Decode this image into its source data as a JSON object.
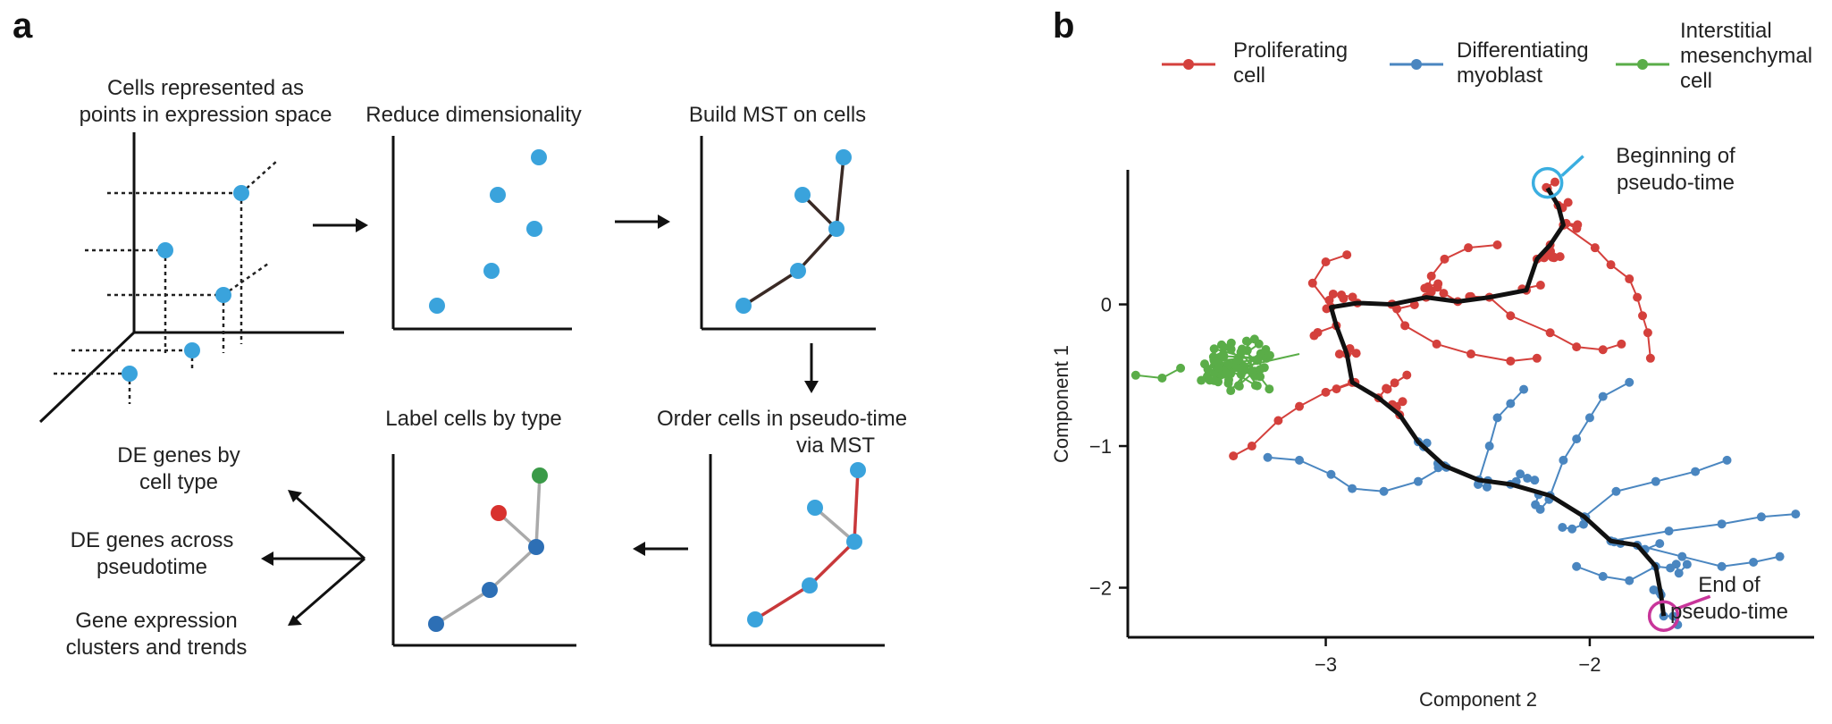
{
  "panel_a": {
    "label": "a",
    "step1_line1": "Cells represented as",
    "step1_line2": "points in expression space",
    "step2": "Reduce dimensionality",
    "step3": "Build MST on cells",
    "step4_line1": "Order cells in pseudo-time",
    "step4_line2": "via MST",
    "step5": "Label cells by type",
    "out1_line1": "DE genes by",
    "out1_line2": "cell type",
    "out2_line1": "DE genes across",
    "out2_line2": "pseudotime",
    "out3_line1": "Gene expression",
    "out3_line2": "clusters and trends",
    "colors": {
      "point": "#3aa3dc",
      "mst_edge": "#3a2a25",
      "path_edge": "#c8383a",
      "side_edge": "#aaaaaa",
      "red_cell": "#d8322e",
      "green_cell": "#3a9a48",
      "blue_cell": "#2d6fb5"
    }
  },
  "panel_b": {
    "label": "b",
    "annotation_start_line1": "Beginning of",
    "annotation_start_line2": "pseudo-time",
    "annotation_end_line1": "End of",
    "annotation_end_line2": "pseudo-time",
    "legend": [
      {
        "line1": "Proliferating",
        "line2": "cell",
        "line3": "",
        "color": "#d4403c"
      },
      {
        "line1": "Differentiating",
        "line2": "myoblast",
        "line3": "",
        "color": "#4a86c0"
      },
      {
        "line1": "Interstitial",
        "line2": "mesenchymal",
        "line3": "cell",
        "color": "#5aad48"
      }
    ],
    "colors": {
      "start_circle": "#3aaee0",
      "end_circle": "#c8359a",
      "backbone": "#111111"
    }
  },
  "chart_data": {
    "type": "scatter",
    "xlabel": "Component 2",
    "ylabel": "Component 1",
    "xlim": [
      -3.75,
      -1.15
    ],
    "ylim": [
      -2.35,
      0.95
    ],
    "xticks": [
      -3,
      -2
    ],
    "yticks": [
      0,
      -1,
      -2
    ],
    "xtick_labels": [
      "−3",
      "−2"
    ],
    "ytick_labels": [
      "0",
      "−1",
      "−2"
    ],
    "series": [
      {
        "name": "Proliferating cell",
        "color": "#d4403c"
      },
      {
        "name": "Differentiating myoblast",
        "color": "#4a86c0"
      },
      {
        "name": "Interstitial mesenchymal cell",
        "color": "#5aad48"
      }
    ],
    "backbone": [
      [
        -2.16,
        0.82
      ],
      [
        -2.12,
        0.7
      ],
      [
        -2.1,
        0.56
      ],
      [
        -2.15,
        0.42
      ],
      [
        -2.2,
        0.32
      ],
      [
        -2.24,
        0.1
      ],
      [
        -2.38,
        0.05
      ],
      [
        -2.5,
        0.02
      ],
      [
        -2.62,
        0.05
      ],
      [
        -2.75,
        0.0
      ],
      [
        -2.88,
        0.01
      ],
      [
        -2.98,
        -0.02
      ],
      [
        -2.96,
        -0.15
      ],
      [
        -2.92,
        -0.35
      ],
      [
        -2.9,
        -0.55
      ],
      [
        -2.8,
        -0.66
      ],
      [
        -2.72,
        -0.78
      ],
      [
        -2.65,
        -0.97
      ],
      [
        -2.55,
        -1.14
      ],
      [
        -2.42,
        -1.24
      ],
      [
        -2.3,
        -1.27
      ],
      [
        -2.15,
        -1.35
      ],
      [
        -2.02,
        -1.5
      ],
      [
        -1.92,
        -1.67
      ],
      [
        -1.82,
        -1.7
      ],
      [
        -1.75,
        -1.85
      ],
      [
        -1.73,
        -2.05
      ],
      [
        -1.72,
        -2.2
      ]
    ],
    "start_point": [
      -2.16,
      0.82
    ],
    "end_point": [
      -1.72,
      -2.2
    ]
  }
}
